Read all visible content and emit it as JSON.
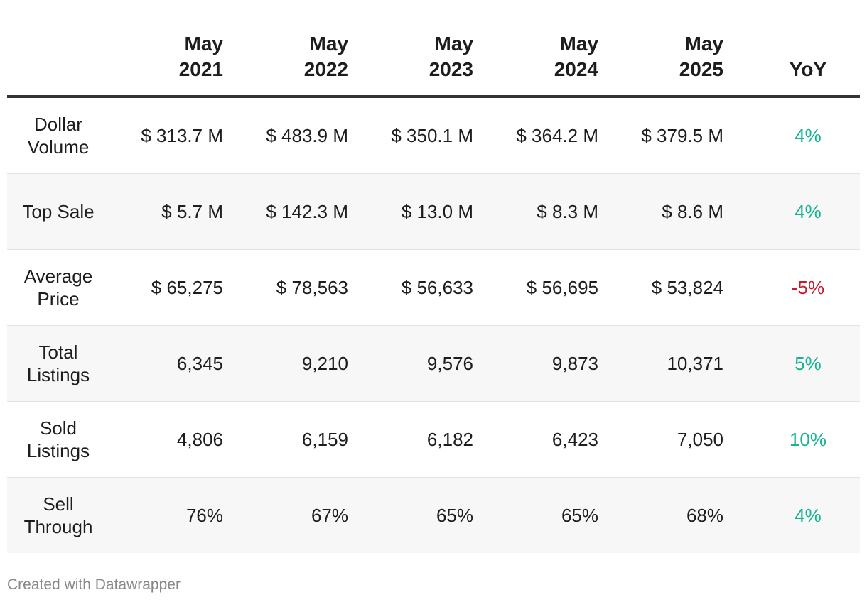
{
  "chart_data": {
    "type": "table",
    "columns": [
      {
        "line1": "May",
        "line2": "2021"
      },
      {
        "line1": "May",
        "line2": "2022"
      },
      {
        "line1": "May",
        "line2": "2023"
      },
      {
        "line1": "May",
        "line2": "2024"
      },
      {
        "line1": "May",
        "line2": "2025"
      }
    ],
    "yoy_header": "YoY",
    "rows": [
      {
        "label": "Dollar Volume",
        "values": [
          "$ 313.7 M",
          "$ 483.9 M",
          "$ 350.1 M",
          "$ 364.2 M",
          "$ 379.5 M"
        ],
        "yoy": "4%",
        "yoy_sign": "pos"
      },
      {
        "label": "Top Sale",
        "values": [
          "$ 5.7 M",
          "$ 142.3 M",
          "$ 13.0 M",
          "$ 8.3 M",
          "$ 8.6 M"
        ],
        "yoy": "4%",
        "yoy_sign": "pos"
      },
      {
        "label": "Average Price",
        "values": [
          "$ 65,275",
          "$ 78,563",
          "$ 56,633",
          "$ 56,695",
          "$ 53,824"
        ],
        "yoy": "-5%",
        "yoy_sign": "neg"
      },
      {
        "label": "Total Listings",
        "values": [
          "6,345",
          "9,210",
          "9,576",
          "9,873",
          "10,371"
        ],
        "yoy": "5%",
        "yoy_sign": "pos"
      },
      {
        "label": "Sold Listings",
        "values": [
          "4,806",
          "6,159",
          "6,182",
          "6,423",
          "7,050"
        ],
        "yoy": "10%",
        "yoy_sign": "pos"
      },
      {
        "label": "Sell Through",
        "values": [
          "76%",
          "67%",
          "65%",
          "65%",
          "68%"
        ],
        "yoy": "4%",
        "yoy_sign": "pos"
      }
    ],
    "colors": {
      "positive": "#19b394",
      "negative": "#c7192b",
      "header_rule": "#333333",
      "alt_row": "#f7f7f7"
    }
  },
  "footer": {
    "credit": "Created with Datawrapper"
  }
}
